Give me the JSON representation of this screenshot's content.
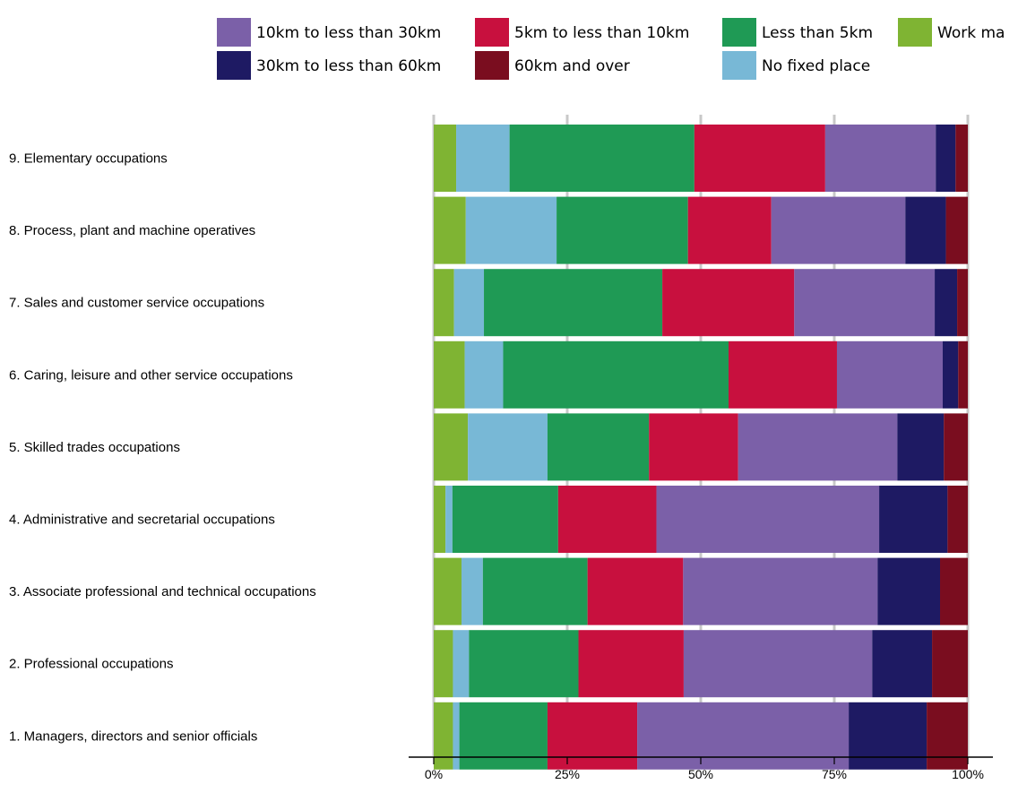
{
  "chart_data": {
    "type": "bar",
    "orientation": "horizontal",
    "stacked": "percent",
    "title": "",
    "xlabel": "",
    "ylabel": "",
    "xlim": [
      0,
      100
    ],
    "grid": true,
    "legend_position": "top",
    "x_ticks": [
      "0%",
      "25%",
      "50%",
      "75%",
      "100%"
    ],
    "categories": [
      "9. Elementary occupations",
      "8. Process, plant and machine operatives",
      "7. Sales and customer service occupations",
      "6. Caring, leisure and other service occupations",
      "5. Skilled trades occupations",
      "4. Administrative and secretarial occupations",
      "3. Associate professional and technical occupations",
      "2. Professional occupations",
      "1. Managers, directors and senior officials"
    ],
    "series": [
      {
        "name": "Work ma",
        "color": "#7fb433",
        "values": [
          4.2,
          6.0,
          3.8,
          5.8,
          6.4,
          2.2,
          5.2,
          3.6,
          3.6
        ]
      },
      {
        "name": "No fixed place",
        "color": "#78b8d6",
        "values": [
          10.0,
          17.0,
          5.6,
          7.2,
          14.9,
          1.3,
          4.0,
          3.0,
          1.2
        ]
      },
      {
        "name": "Less than 5km",
        "color": "#1f9a55",
        "values": [
          34.6,
          24.6,
          33.4,
          42.2,
          19.0,
          19.8,
          19.6,
          20.5,
          16.5
        ]
      },
      {
        "name": "5km to less than 10km",
        "color": "#c8103e",
        "values": [
          24.5,
          15.6,
          24.7,
          20.3,
          16.7,
          18.4,
          17.9,
          19.7,
          16.8
        ]
      },
      {
        "name": "10km to less than 30km",
        "color": "#7b60a8",
        "values": [
          20.7,
          25.1,
          26.3,
          19.8,
          29.8,
          41.7,
          36.4,
          35.3,
          39.6
        ]
      },
      {
        "name": "30km to less than 60km",
        "color": "#1e1a63",
        "values": [
          3.7,
          7.6,
          4.2,
          2.9,
          8.7,
          12.8,
          11.7,
          11.2,
          14.6
        ]
      },
      {
        "name": "60km and over",
        "color": "#7a0d1f",
        "values": [
          2.3,
          4.1,
          2.0,
          1.8,
          4.5,
          3.8,
          5.2,
          6.7,
          7.7
        ]
      }
    ]
  },
  "legend_order": [
    "10km to less than 30km",
    "5km to less than 10km",
    "Less than 5km",
    "Work ma",
    "30km to less than 60km",
    "60km and over",
    "No fixed place"
  ]
}
